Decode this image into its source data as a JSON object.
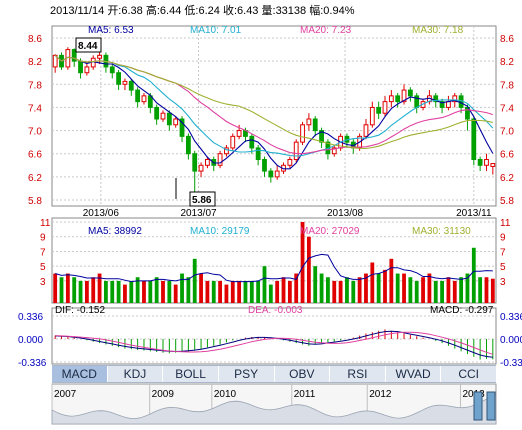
{
  "header": {
    "date": "2013/11/14",
    "open_label": "开:",
    "open": "6.38",
    "high_label": "高:",
    "high": "6.44",
    "low_label": "低:",
    "low": "6.24",
    "close_label": "收:",
    "close": "6.43",
    "volume_label": "量:",
    "volume": "33138",
    "change_label": "幅:",
    "change": "0.94%"
  },
  "ma_legend": {
    "ma5": "MA5: 6.53",
    "ma10": "MA10: 7.01",
    "ma20": "MA20: 7.23",
    "ma30": "MA30: 7.18"
  },
  "volume_legend": {
    "ma5": "MA5: 38992",
    "ma10": "MA10: 29179",
    "ma20": "MA20: 27029",
    "ma30": "MA30: 31130"
  },
  "macd_legend": {
    "dif": "DIF: -0.152",
    "dea": "DEA: -0.003",
    "macd": "MACD: -0.297"
  },
  "tabs": [
    "MACD",
    "KDJ",
    "BOLL",
    "PSY",
    "OBV",
    "RSI",
    "WVAD",
    "CCI"
  ],
  "active_tab": "MACD",
  "colors": {
    "up": "#e00000",
    "down": "#00a000",
    "ma5": "#0000a0",
    "ma10": "#20b0d0",
    "ma20": "#e040a0",
    "ma30": "#a0b030",
    "grid": "#c8c8c8",
    "axis_text": "#d00000"
  },
  "chart_data": [
    {
      "type": "candlestick",
      "title": "",
      "x_tick_labels": [
        "2013/06",
        "2013/07",
        "2013/08",
        "2013/11"
      ],
      "y_ticks": [
        "8.6",
        "8.2",
        "7.8",
        "7.4",
        "7.0",
        "6.6",
        "6.2",
        "5.8"
      ],
      "ylim": [
        5.8,
        8.6
      ],
      "annotations": {
        "high": "8.44",
        "low": "5.86"
      },
      "candles": [
        [
          8.1,
          8.3,
          8.0,
          8.32
        ],
        [
          8.3,
          8.1,
          8.05,
          8.35
        ],
        [
          8.1,
          8.4,
          8.05,
          8.44
        ],
        [
          8.4,
          8.2,
          8.1,
          8.42
        ],
        [
          8.2,
          8.0,
          7.9,
          8.25
        ],
        [
          8.0,
          8.1,
          7.95,
          8.2
        ],
        [
          8.1,
          8.25,
          8.05,
          8.3
        ],
        [
          8.25,
          8.3,
          8.15,
          8.4
        ],
        [
          8.3,
          8.1,
          8.0,
          8.35
        ],
        [
          8.1,
          8.0,
          7.9,
          8.15
        ],
        [
          8.0,
          7.8,
          7.7,
          8.05
        ],
        [
          7.8,
          7.85,
          7.7,
          7.9
        ],
        [
          7.85,
          7.7,
          7.6,
          7.9
        ],
        [
          7.7,
          7.5,
          7.4,
          7.75
        ],
        [
          7.5,
          7.6,
          7.45,
          7.65
        ],
        [
          7.6,
          7.4,
          7.3,
          7.65
        ],
        [
          7.4,
          7.2,
          7.1,
          7.45
        ],
        [
          7.2,
          7.3,
          7.15,
          7.35
        ],
        [
          7.3,
          7.1,
          7.0,
          7.35
        ],
        [
          7.1,
          7.2,
          7.05,
          7.25
        ],
        [
          7.2,
          6.9,
          6.8,
          7.25
        ],
        [
          6.9,
          6.6,
          6.5,
          6.95
        ],
        [
          6.6,
          6.3,
          5.86,
          6.65
        ],
        [
          6.3,
          6.4,
          6.2,
          6.45
        ],
        [
          6.4,
          6.5,
          6.35,
          6.55
        ],
        [
          6.5,
          6.4,
          6.3,
          6.55
        ],
        [
          6.4,
          6.6,
          6.35,
          6.65
        ],
        [
          6.6,
          6.7,
          6.55,
          6.75
        ],
        [
          6.7,
          6.9,
          6.65,
          6.95
        ],
        [
          6.9,
          7.0,
          6.85,
          7.1
        ],
        [
          7.0,
          6.9,
          6.8,
          7.05
        ],
        [
          6.9,
          6.7,
          6.6,
          6.95
        ],
        [
          6.7,
          6.5,
          6.4,
          6.75
        ],
        [
          6.5,
          6.3,
          6.2,
          6.55
        ],
        [
          6.3,
          6.2,
          6.1,
          6.35
        ],
        [
          6.2,
          6.3,
          6.15,
          6.4
        ],
        [
          6.3,
          6.4,
          6.25,
          6.45
        ],
        [
          6.4,
          6.5,
          6.35,
          6.55
        ],
        [
          6.5,
          6.8,
          6.45,
          6.85
        ],
        [
          6.8,
          7.1,
          6.75,
          7.15
        ],
        [
          7.1,
          7.2,
          7.0,
          7.3
        ],
        [
          7.2,
          7.0,
          6.9,
          7.25
        ],
        [
          7.0,
          6.8,
          6.7,
          7.05
        ],
        [
          6.8,
          6.6,
          6.5,
          6.85
        ],
        [
          6.6,
          6.7,
          6.55,
          6.75
        ],
        [
          6.7,
          6.9,
          6.65,
          6.95
        ],
        [
          6.9,
          6.8,
          6.7,
          6.95
        ],
        [
          6.8,
          6.7,
          6.6,
          6.85
        ],
        [
          6.7,
          6.9,
          6.65,
          6.95
        ],
        [
          6.9,
          7.1,
          6.85,
          7.2
        ],
        [
          7.1,
          7.4,
          7.05,
          7.5
        ],
        [
          7.4,
          7.3,
          7.2,
          7.5
        ],
        [
          7.3,
          7.5,
          7.25,
          7.6
        ],
        [
          7.5,
          7.6,
          7.4,
          7.7
        ],
        [
          7.6,
          7.5,
          7.4,
          7.65
        ],
        [
          7.5,
          7.7,
          7.45,
          7.8
        ],
        [
          7.7,
          7.6,
          7.5,
          7.75
        ],
        [
          7.6,
          7.4,
          7.3,
          7.65
        ],
        [
          7.4,
          7.5,
          7.35,
          7.55
        ],
        [
          7.5,
          7.6,
          7.45,
          7.7
        ],
        [
          7.6,
          7.5,
          7.4,
          7.65
        ],
        [
          7.5,
          7.4,
          7.3,
          7.55
        ],
        [
          7.4,
          7.5,
          7.35,
          7.6
        ],
        [
          7.5,
          7.6,
          7.4,
          7.65
        ],
        [
          7.6,
          7.4,
          7.3,
          7.65
        ],
        [
          7.4,
          7.2,
          7.0,
          7.45
        ],
        [
          7.2,
          6.5,
          6.4,
          7.25
        ],
        [
          6.5,
          6.4,
          6.3,
          6.55
        ],
        [
          6.4,
          6.5,
          6.3,
          6.6
        ],
        [
          6.38,
          6.43,
          6.24,
          6.44
        ]
      ]
    },
    {
      "type": "bar",
      "title": "",
      "y_ticks": [
        "11",
        "9",
        "7",
        "5",
        "3"
      ],
      "ylim": [
        0,
        11
      ],
      "values": [
        4,
        3.5,
        4,
        3.5,
        3,
        3,
        3.5,
        4,
        3,
        3,
        3,
        2.5,
        3,
        3.5,
        3,
        3,
        3.5,
        3,
        3,
        2.5,
        4,
        3.5,
        6,
        4,
        3,
        3,
        3,
        2.5,
        3,
        3,
        3,
        3,
        3,
        5,
        2.5,
        3,
        3.5,
        3,
        4,
        11,
        9,
        5,
        4,
        3.5,
        3,
        3,
        3.5,
        3,
        3.5,
        4,
        5.5,
        4,
        4.5,
        6,
        4,
        4,
        3.5,
        3,
        3.5,
        4,
        3,
        3,
        3.5,
        3,
        3.5,
        4,
        7.5,
        3.5,
        3.5,
        3.3
      ]
    },
    {
      "type": "bar",
      "title": "",
      "y_ticks": [
        "0.336",
        "0.000",
        "-0.336"
      ],
      "ylim": [
        -0.336,
        0.336
      ],
      "values": [
        0.05,
        0.04,
        0.03,
        0.02,
        0.0,
        -0.02,
        -0.04,
        -0.06,
        -0.08,
        -0.1,
        -0.12,
        -0.14,
        -0.15,
        -0.16,
        -0.17,
        -0.18,
        -0.19,
        -0.2,
        -0.21,
        -0.2,
        -0.19,
        -0.18,
        -0.17,
        -0.15,
        -0.12,
        -0.1,
        -0.08,
        -0.05,
        -0.02,
        0.0,
        0.02,
        0.03,
        0.03,
        0.02,
        0.01,
        0.0,
        -0.02,
        -0.04,
        -0.06,
        -0.08,
        -0.1,
        -0.08,
        -0.06,
        -0.05,
        -0.04,
        -0.02,
        0.0,
        0.02,
        0.05,
        0.08,
        0.1,
        0.12,
        0.14,
        0.12,
        0.1,
        0.08,
        0.06,
        0.04,
        0.02,
        0.0,
        -0.03,
        -0.06,
        -0.1,
        -0.14,
        -0.18,
        -0.22,
        -0.26,
        -0.3,
        -0.29,
        -0.297
      ]
    }
  ],
  "timeline": {
    "years": [
      "2007",
      "2009",
      "2010",
      "2011",
      "2012",
      "2013"
    ]
  }
}
